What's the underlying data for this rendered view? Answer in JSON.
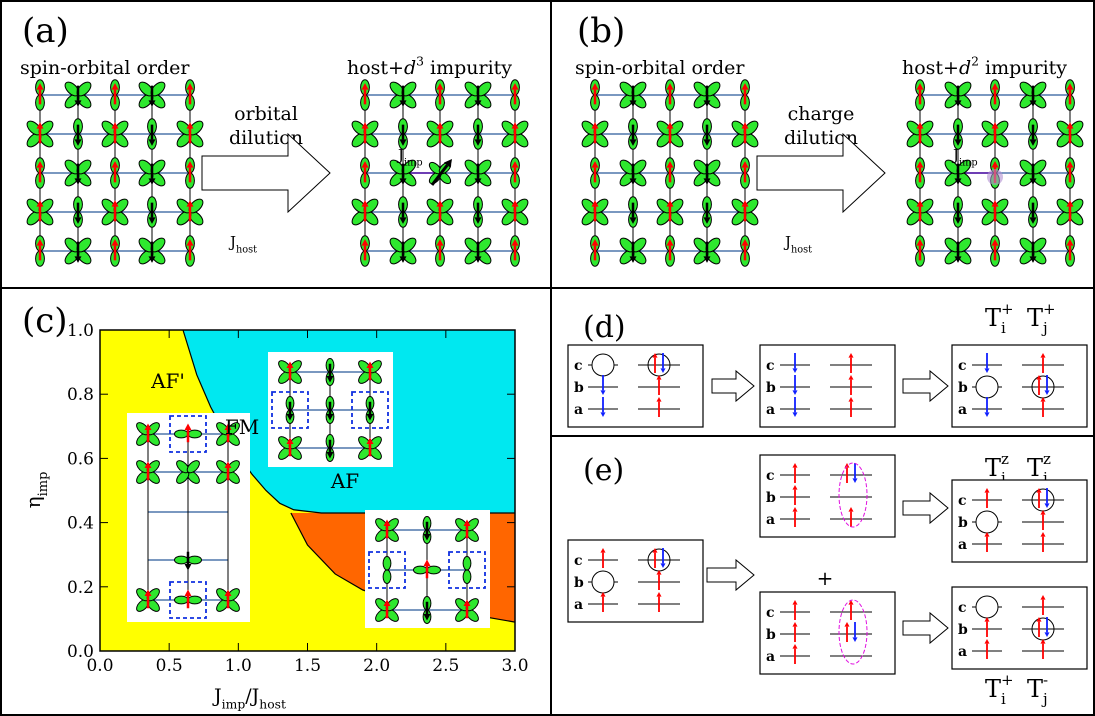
{
  "panels": {
    "a": "(a)",
    "b": "(b)",
    "c": "(c)",
    "d": "(d)",
    "e": "(e)"
  },
  "panel_a": {
    "left_title": "spin-orbital order",
    "right_title": {
      "prefix": "host+",
      "ion": "d",
      "power": "3",
      "suffix": "impurity"
    },
    "process": [
      "orbital",
      "dilution"
    ],
    "j_host": {
      "base": "J",
      "sub": "host"
    },
    "j_imp": {
      "base": "J",
      "sub": "imp"
    }
  },
  "panel_b": {
    "left_title": "spin-orbital order",
    "right_title": {
      "prefix": "host+",
      "ion": "d",
      "power": "2",
      "suffix": "impurity"
    },
    "process": [
      "charge",
      "dilution"
    ],
    "j_host": {
      "base": "J",
      "sub": "host"
    },
    "j_imp": {
      "base": "J",
      "sub": "imp"
    }
  },
  "chart_data": {
    "type": "phase-diagram",
    "xlim": [
      0,
      3
    ],
    "ylim": [
      0,
      1
    ],
    "xticks": [
      {
        "value": 0,
        "label": "0.0"
      },
      {
        "value": 0.5,
        "label": "0.5"
      },
      {
        "value": 1,
        "label": "1.0"
      },
      {
        "value": 1.5,
        "label": "1.5"
      },
      {
        "value": 2,
        "label": "2.0"
      },
      {
        "value": 2.5,
        "label": "2.5"
      },
      {
        "value": 3,
        "label": "3.0"
      }
    ],
    "yticks": [
      {
        "value": 0,
        "label": "0.0"
      },
      {
        "value": 0.2,
        "label": "0.2"
      },
      {
        "value": 0.4,
        "label": "0.4"
      },
      {
        "value": 0.6,
        "label": "0.6"
      },
      {
        "value": 0.8,
        "label": "0.8"
      },
      {
        "value": 1,
        "label": "1.0"
      }
    ],
    "xlabel": {
      "base": "J",
      "sub": "imp",
      "sep": "/",
      "base2": "J",
      "sub2": "host"
    },
    "ylabel": {
      "base": "η",
      "sub": "imp"
    },
    "regions": [
      {
        "name": "AF'",
        "color": "#ffff00"
      },
      {
        "name": "FM",
        "color": "#00e8f0"
      },
      {
        "name": "AF",
        "color": "#ff6600"
      }
    ],
    "boundaries": [
      {
        "x": [
          0.6,
          0.7,
          0.8,
          0.9,
          1.0,
          1.1,
          1.2,
          1.3,
          1.4,
          1.6,
          2.0,
          3.0
        ],
        "y": [
          1.0,
          0.86,
          0.76,
          0.68,
          0.61,
          0.55,
          0.5,
          0.46,
          0.44,
          0.43,
          0.43,
          0.43
        ]
      },
      {
        "x": [
          1.38,
          1.5,
          1.7,
          1.9,
          2.2,
          2.6,
          3.0
        ],
        "y": [
          0.43,
          0.33,
          0.24,
          0.19,
          0.15,
          0.12,
          0.09
        ]
      }
    ]
  },
  "level_labels": [
    "c",
    "b",
    "a"
  ],
  "plus": "+",
  "operators": {
    "d": [
      {
        "base": "T",
        "sub": "i",
        "sup": "+"
      },
      {
        "base": "T",
        "sub": "j",
        "sup": "+"
      }
    ],
    "e_top": [
      {
        "base": "T",
        "sub": "i",
        "sup": "z"
      },
      {
        "base": "T",
        "sub": "j",
        "sup": "z"
      }
    ],
    "e_bottom": [
      {
        "base": "T",
        "sub": "i",
        "sup": "+"
      },
      {
        "base": "T",
        "sub": "j",
        "sup": "-"
      }
    ]
  }
}
